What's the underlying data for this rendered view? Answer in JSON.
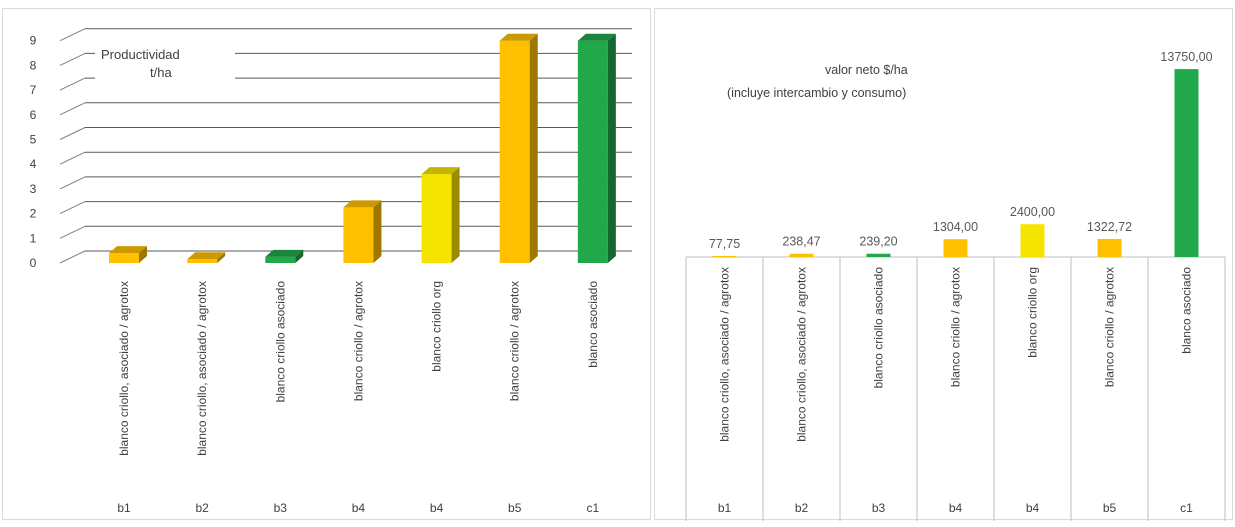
{
  "chart_data": [
    {
      "type": "bar",
      "title": "Productividad",
      "title_line2": "t/ha",
      "ylabel": "",
      "xlabel": "",
      "ylim": [
        0,
        9
      ],
      "yticks": [
        "0",
        "1",
        "2",
        "3",
        "4",
        "5",
        "6",
        "7",
        "8",
        "9"
      ],
      "grid": true,
      "style": "3d-column",
      "categories": [
        {
          "group": "b1",
          "label": "blanco criollo, asociado / agrotox",
          "value": 0.4,
          "color": "#FFC000"
        },
        {
          "group": "b2",
          "label": "blanco criollo, asociado / agrotox",
          "value": 0.15,
          "color": "#FFC000"
        },
        {
          "group": "b3",
          "label": "blanco criollo asociado",
          "value": 0.25,
          "color": "#21A84A"
        },
        {
          "group": "b4",
          "label": "blanco criollo / agrotox",
          "value": 2.25,
          "color": "#FFC000"
        },
        {
          "group": "b4",
          "label": "blanco criollo org",
          "value": 3.6,
          "color": "#F5E400"
        },
        {
          "group": "b5",
          "label": "blanco criollo / agrotox",
          "value": 9.0,
          "color": "#FFC000"
        },
        {
          "group": "c1",
          "label": "blanco asociado",
          "value": 9.0,
          "color": "#21A84A"
        }
      ]
    },
    {
      "type": "bar",
      "title": "valor neto $/ha",
      "subtitle": "(incluye intercambio y consumo)",
      "xlabel": "",
      "ylabel": "",
      "ylim": [
        0,
        15000
      ],
      "grid": false,
      "categories": [
        {
          "group": "b1",
          "label": "blanco criollo, asociado / agrotox",
          "value": 77.75,
          "data_label": "77,75",
          "color": "#FFC000"
        },
        {
          "group": "b2",
          "label": "blanco criollo, asociado / agrotox",
          "value": 238.47,
          "data_label": "238,47",
          "color": "#FFC000"
        },
        {
          "group": "b3",
          "label": "blanco criollo asociado",
          "value": 239.2,
          "data_label": "239,20",
          "color": "#21A84A"
        },
        {
          "group": "b4",
          "label": "blanco criollo / agrotox",
          "value": 1304.0,
          "data_label": "1304,00",
          "color": "#FFC000"
        },
        {
          "group": "b4",
          "label": "blanco criollo org",
          "value": 2400.0,
          "data_label": "2400,00",
          "color": "#F5E400"
        },
        {
          "group": "b5",
          "label": "blanco criollo / agrotox",
          "value": 1322.72,
          "data_label": "1322,72",
          "color": "#FFC000"
        },
        {
          "group": "c1",
          "label": "blanco asociado",
          "value": 13750.0,
          "data_label": "13750,00",
          "color": "#21A84A"
        }
      ]
    }
  ]
}
